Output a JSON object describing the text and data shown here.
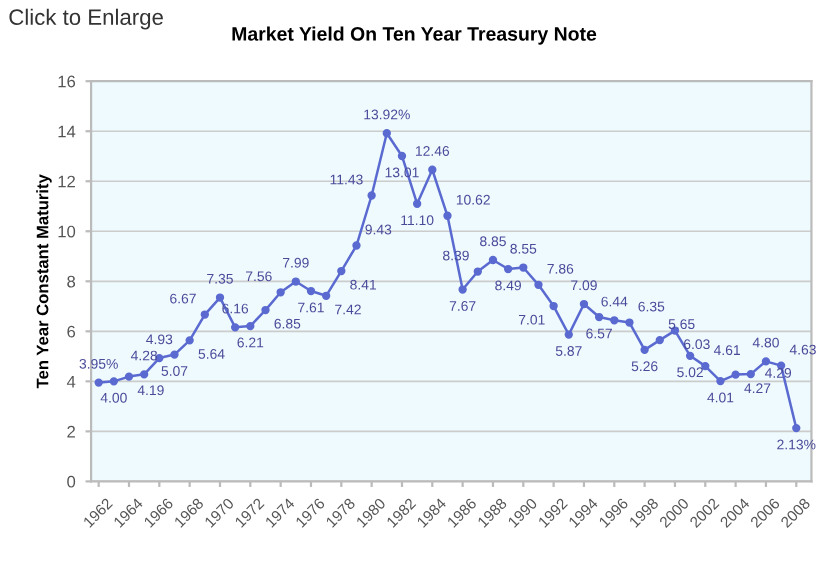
{
  "chart_data": {
    "type": "line",
    "title": "Market Yield On Ten Year Treasury Note",
    "ylabel": "Ten Year Constant Maturity",
    "annotations": [
      "Click to Enlarge"
    ],
    "x": [
      1962,
      1963,
      1964,
      1965,
      1966,
      1967,
      1968,
      1969,
      1970,
      1971,
      1972,
      1973,
      1974,
      1975,
      1976,
      1977,
      1978,
      1979,
      1980,
      1981,
      1982,
      1983,
      1984,
      1985,
      1986,
      1987,
      1988,
      1989,
      1990,
      1991,
      1992,
      1993,
      1994,
      1995,
      1996,
      1997,
      1998,
      1999,
      2000,
      2001,
      2002,
      2003,
      2004,
      2005,
      2006,
      2007,
      2008
    ],
    "series": [
      {
        "color": "#5a6ad0",
        "values": [
          3.95,
          4.0,
          4.19,
          4.28,
          4.93,
          5.07,
          5.64,
          6.67,
          7.35,
          6.16,
          6.21,
          6.85,
          7.56,
          7.99,
          7.61,
          7.42,
          8.41,
          9.43,
          11.43,
          13.92,
          13.01,
          11.1,
          12.46,
          10.62,
          7.67,
          8.39,
          8.85,
          8.49,
          8.55,
          7.86,
          7.01,
          5.87,
          7.09,
          6.57,
          6.44,
          6.35,
          5.26,
          5.65,
          6.03,
          5.02,
          4.61,
          4.01,
          4.27,
          4.29,
          4.8,
          4.63,
          2.13
        ],
        "value_labels": [
          "3.95%",
          "4.00",
          "4.19",
          "4.28",
          "4.93",
          "5.07",
          "5.64",
          "6.67",
          "7.35",
          "6.16",
          "6.21",
          "6.85",
          "7.56",
          "7.99",
          "7.61",
          "7.42",
          "8.41",
          "9.43",
          "11.43",
          "13.92%",
          "13.01",
          "11.10",
          "12.46",
          "10.62",
          "7.67",
          "8.39",
          "8.85",
          "8.49",
          "8.55",
          "7.86",
          "7.01",
          "5.87",
          "7.09",
          "6.57",
          "6.44",
          "6.35",
          "5.26",
          "5.65",
          "6.03",
          "5.02",
          "4.61",
          "4.01",
          "4.27",
          "4.29",
          "4.80",
          "4.63",
          "2.13%"
        ]
      }
    ],
    "marker": "circle",
    "grid": "y",
    "xlim": [
      1961.5,
      2009
    ],
    "xticks": [
      1962,
      1964,
      1966,
      1968,
      1970,
      1972,
      1974,
      1976,
      1978,
      1980,
      1982,
      1984,
      1986,
      1988,
      1990,
      1992,
      1994,
      1996,
      1998,
      2000,
      2002,
      2004,
      2006,
      2008
    ],
    "ylim": [
      0,
      16
    ],
    "yticks": [
      0,
      2,
      4,
      6,
      8,
      10,
      12,
      14,
      16
    ]
  }
}
